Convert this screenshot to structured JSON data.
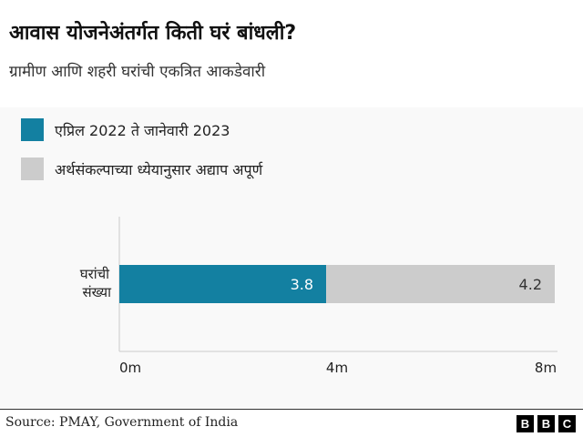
{
  "title": "आवास योजनेअंतर्गत किती घरं बांधली?",
  "subtitle": "ग्रामीण आणि शहरी घरांची एकत्रित आकडेवारी",
  "source": "Source: PMAY, Government of India",
  "logo": "BBC",
  "chart_data": {
    "type": "bar",
    "orientation": "horizontal",
    "stacked": true,
    "categories": [
      "घरांची संख्या"
    ],
    "series": [
      {
        "name": "एप्रिल 2022 ते जानेवारी 2023",
        "values": [
          3.8
        ],
        "color": "#1380a1",
        "label": "3.8"
      },
      {
        "name": "अर्थसंकल्पाच्या ध्येयानुसार अद्याप अपूर्ण",
        "values": [
          4.2
        ],
        "color": "#cccccc",
        "label": "4.2"
      }
    ],
    "xlim": [
      0,
      8
    ],
    "xticks": [
      0,
      4,
      8
    ],
    "xtick_labels": [
      "0m",
      "4m",
      "8m"
    ],
    "legend_position": "top-left",
    "grid": false
  }
}
